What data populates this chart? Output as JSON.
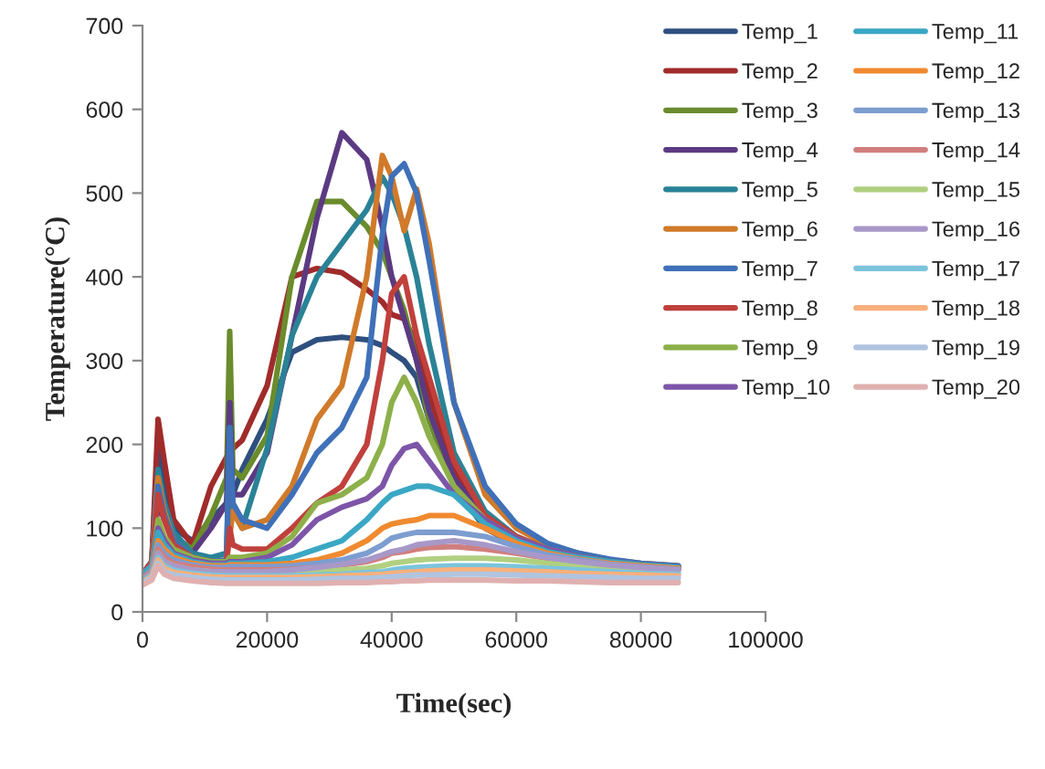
{
  "chart_data": {
    "type": "line",
    "xlabel": "Time(sec)",
    "ylabel": "Temperature(°C)",
    "x": [
      0,
      1500,
      2500,
      3500,
      5000,
      8000,
      11000,
      13500,
      14000,
      14500,
      16000,
      20000,
      24000,
      28000,
      32000,
      36000,
      38500,
      40000,
      42000,
      44000,
      46000,
      50000,
      55000,
      60000,
      65000,
      70000,
      75000,
      80000,
      86000
    ],
    "xlim": [
      0,
      100000
    ],
    "xticks": [
      0,
      20000,
      40000,
      60000,
      80000,
      100000
    ],
    "ylim": [
      0,
      700
    ],
    "yticks": [
      0,
      100,
      200,
      300,
      400,
      500,
      600,
      700
    ],
    "grid": false,
    "legend": "top right",
    "marker": "none",
    "line_style": "solid",
    "series": [
      {
        "name": "Temp_1",
        "color": "#2e4f7f",
        "values": [
          45,
          60,
          200,
          150,
          100,
          85,
          110,
          130,
          150,
          140,
          170,
          230,
          310,
          325,
          328,
          325,
          318,
          310,
          300,
          280,
          230,
          150,
          100,
          80,
          70,
          63,
          58,
          55,
          52
        ]
      },
      {
        "name": "Temp_2",
        "color": "#a02b2b",
        "values": [
          45,
          60,
          230,
          180,
          110,
          80,
          150,
          185,
          190,
          195,
          205,
          270,
          400,
          410,
          405,
          385,
          370,
          355,
          350,
          320,
          260,
          170,
          110,
          85,
          72,
          65,
          60,
          56,
          53
        ]
      },
      {
        "name": "Temp_3",
        "color": "#6a8c2c",
        "values": [
          45,
          60,
          150,
          120,
          90,
          75,
          115,
          160,
          335,
          170,
          160,
          210,
          400,
          490,
          490,
          460,
          430,
          400,
          360,
          300,
          230,
          150,
          105,
          82,
          70,
          63,
          58,
          55,
          52
        ]
      },
      {
        "name": "Temp_4",
        "color": "#5b3a82",
        "values": [
          45,
          60,
          130,
          110,
          85,
          70,
          100,
          130,
          250,
          140,
          140,
          190,
          330,
          470,
          572,
          540,
          460,
          400,
          350,
          300,
          240,
          160,
          110,
          85,
          72,
          65,
          60,
          56,
          53
        ]
      },
      {
        "name": "Temp_5",
        "color": "#2a8296",
        "values": [
          45,
          60,
          170,
          130,
          95,
          70,
          65,
          70,
          220,
          120,
          100,
          195,
          330,
          400,
          440,
          480,
          519,
          500,
          460,
          400,
          320,
          190,
          120,
          90,
          75,
          66,
          60,
          56,
          54
        ]
      },
      {
        "name": "Temp_6",
        "color": "#d07a2a",
        "values": [
          45,
          60,
          160,
          120,
          85,
          65,
          60,
          62,
          90,
          120,
          100,
          110,
          150,
          230,
          270,
          400,
          545,
          520,
          455,
          505,
          440,
          250,
          140,
          100,
          80,
          70,
          62,
          58,
          55
        ]
      },
      {
        "name": "Temp_7",
        "color": "#3f70b8",
        "values": [
          45,
          60,
          150,
          115,
          85,
          65,
          60,
          62,
          220,
          130,
          110,
          100,
          140,
          190,
          220,
          280,
          450,
          520,
          535,
          500,
          420,
          250,
          150,
          105,
          82,
          70,
          63,
          58,
          55
        ]
      },
      {
        "name": "Temp_8",
        "color": "#c0403c",
        "values": [
          45,
          60,
          140,
          110,
          80,
          65,
          60,
          60,
          100,
          80,
          75,
          75,
          100,
          130,
          150,
          200,
          300,
          380,
          400,
          330,
          280,
          180,
          115,
          90,
          75,
          66,
          60,
          56,
          53
        ]
      },
      {
        "name": "Temp_9",
        "color": "#8db04a",
        "values": [
          45,
          55,
          110,
          90,
          75,
          65,
          60,
          60,
          65,
          65,
          65,
          70,
          90,
          130,
          140,
          160,
          200,
          250,
          280,
          250,
          210,
          150,
          110,
          88,
          75,
          66,
          60,
          56,
          53
        ]
      },
      {
        "name": "Temp_10",
        "color": "#7d55a8",
        "values": [
          45,
          55,
          100,
          85,
          70,
          62,
          58,
          58,
          60,
          60,
          60,
          65,
          80,
          110,
          125,
          135,
          150,
          175,
          195,
          200,
          180,
          140,
          110,
          88,
          75,
          66,
          60,
          56,
          53
        ]
      },
      {
        "name": "Temp_11",
        "color": "#3aa7c4",
        "values": [
          45,
          55,
          95,
          80,
          68,
          60,
          56,
          56,
          58,
          58,
          58,
          60,
          65,
          75,
          85,
          110,
          130,
          140,
          145,
          150,
          150,
          140,
          105,
          85,
          72,
          65,
          60,
          56,
          53
        ]
      },
      {
        "name": "Temp_12",
        "color": "#f08a30",
        "values": [
          40,
          50,
          85,
          75,
          65,
          58,
          55,
          55,
          56,
          56,
          56,
          56,
          58,
          62,
          70,
          85,
          100,
          105,
          108,
          110,
          115,
          115,
          100,
          82,
          70,
          63,
          58,
          55,
          52
        ]
      },
      {
        "name": "Temp_13",
        "color": "#7d9dd0",
        "values": [
          40,
          50,
          80,
          70,
          62,
          56,
          53,
          53,
          54,
          54,
          54,
          54,
          55,
          58,
          62,
          70,
          80,
          88,
          92,
          95,
          95,
          95,
          90,
          78,
          68,
          62,
          57,
          54,
          51
        ]
      },
      {
        "name": "Temp_14",
        "color": "#d07f7e",
        "values": [
          40,
          48,
          75,
          65,
          58,
          54,
          51,
          50,
          50,
          50,
          50,
          50,
          51,
          53,
          56,
          60,
          65,
          70,
          72,
          75,
          77,
          78,
          75,
          70,
          64,
          60,
          56,
          53,
          50
        ]
      },
      {
        "name": "Temp_15",
        "color": "#b0d080",
        "values": [
          38,
          46,
          70,
          60,
          55,
          50,
          48,
          47,
          47,
          47,
          47,
          47,
          47,
          48,
          50,
          52,
          55,
          58,
          60,
          62,
          63,
          64,
          64,
          62,
          58,
          55,
          52,
          50,
          48
        ]
      },
      {
        "name": "Temp_16",
        "color": "#a898c8",
        "values": [
          38,
          46,
          70,
          60,
          55,
          50,
          48,
          48,
          48,
          48,
          48,
          48,
          50,
          53,
          57,
          62,
          68,
          72,
          75,
          80,
          82,
          85,
          80,
          72,
          65,
          60,
          56,
          53,
          50
        ]
      },
      {
        "name": "Temp_17",
        "color": "#7cc4dc",
        "values": [
          36,
          44,
          65,
          55,
          50,
          46,
          44,
          43,
          43,
          43,
          43,
          43,
          43,
          44,
          45,
          47,
          48,
          50,
          52,
          53,
          54,
          55,
          55,
          54,
          52,
          50,
          48,
          46,
          45
        ]
      },
      {
        "name": "Temp_18",
        "color": "#f8b07c",
        "values": [
          35,
          42,
          62,
          52,
          47,
          44,
          42,
          41,
          41,
          41,
          41,
          41,
          41,
          42,
          43,
          44,
          45,
          46,
          47,
          48,
          49,
          50,
          50,
          49,
          48,
          46,
          45,
          44,
          43
        ]
      },
      {
        "name": "Temp_19",
        "color": "#b0c4e0",
        "values": [
          34,
          40,
          58,
          48,
          44,
          41,
          39,
          38,
          38,
          38,
          38,
          38,
          38,
          39,
          40,
          40,
          41,
          42,
          43,
          44,
          44,
          45,
          45,
          44,
          43,
          42,
          41,
          40,
          40
        ]
      },
      {
        "name": "Temp_20",
        "color": "#e0b0b0",
        "values": [
          32,
          38,
          55,
          45,
          40,
          37,
          35,
          34,
          34,
          34,
          34,
          34,
          34,
          34,
          35,
          35,
          36,
          36,
          37,
          37,
          38,
          38,
          38,
          37,
          37,
          36,
          35,
          35,
          35
        ]
      }
    ]
  }
}
